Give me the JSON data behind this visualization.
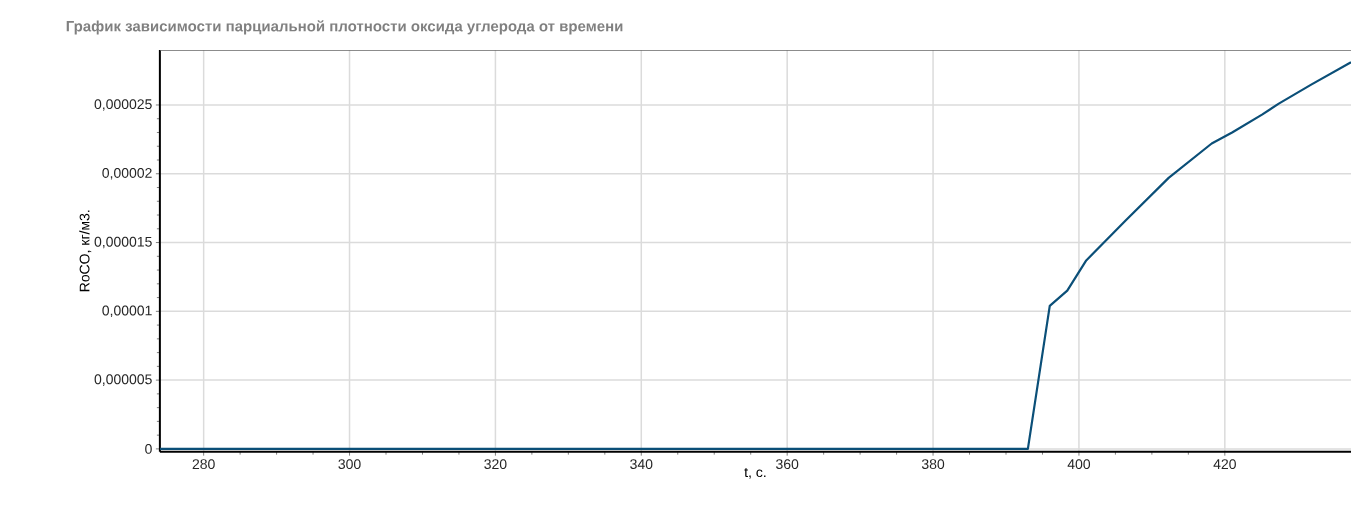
{
  "chart_data": {
    "type": "line",
    "title": "График зависимости парциальной плотности оксида углерода от времени",
    "xlabel": "t, с.",
    "ylabel": "RoCO, кг/м3.",
    "x": [
      274,
      393,
      396,
      398.4,
      401,
      406.4,
      412.3,
      418.2,
      421,
      425.1,
      427.4,
      431.9,
      437.3
    ],
    "series": [
      {
        "color": "#0b4f78",
        "values": [
          0,
          0,
          1.04e-05,
          1.15e-05,
          1.37e-05,
          1.66e-05,
          1.97e-05,
          2.22e-05,
          2.3e-05,
          2.43e-05,
          2.51e-05,
          2.65e-05,
          2.81e-05
        ]
      }
    ],
    "xlim": [
      274,
      437.3
    ],
    "ylim": [
      -2e-07,
      2.9e-05
    ],
    "xticks": [
      280,
      300,
      320,
      340,
      360,
      380,
      400,
      420
    ],
    "yticks": [
      {
        "value": 0,
        "label": "0"
      },
      {
        "value": 5e-06,
        "label": "0,000005"
      },
      {
        "value": 1e-05,
        "label": "0,00001"
      },
      {
        "value": 1.5e-05,
        "label": "0,000015"
      },
      {
        "value": 2e-05,
        "label": "0,00002"
      },
      {
        "value": 2.5e-05,
        "label": "0,000025"
      }
    ],
    "grid": true,
    "marker": "none",
    "line_style": "solid"
  }
}
